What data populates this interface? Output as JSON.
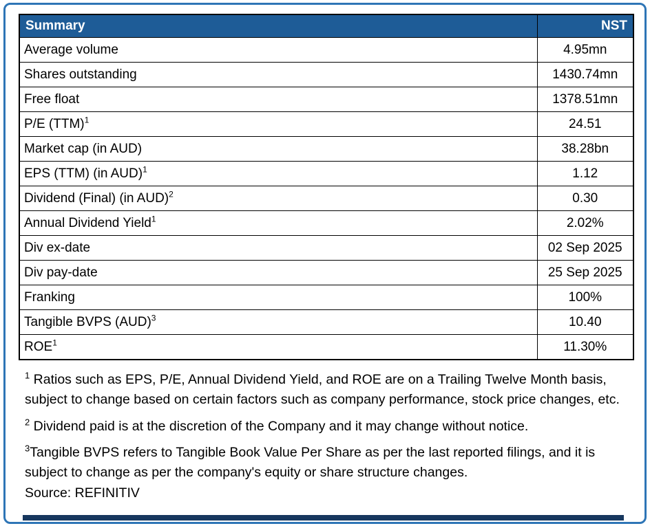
{
  "table": {
    "header": {
      "title": "Summary",
      "ticker": "NST"
    },
    "rows": [
      {
        "label": "Average volume",
        "sup": "",
        "value": "4.95mn"
      },
      {
        "label": "Shares outstanding",
        "sup": "",
        "value": "1430.74mn"
      },
      {
        "label": "Free float",
        "sup": "",
        "value": "1378.51mn"
      },
      {
        "label": "P/E (TTM)",
        "sup": "1",
        "value": "24.51"
      },
      {
        "label": "Market cap (in AUD)",
        "sup": "",
        "value": "38.28bn"
      },
      {
        "label": "EPS (TTM) (in AUD)",
        "sup": "1",
        "value": "1.12"
      },
      {
        "label": "Dividend (Final) (in AUD)",
        "sup": "2",
        "value": "0.30"
      },
      {
        "label": "Annual Dividend Yield",
        "sup": "1",
        "value": "2.02%"
      },
      {
        "label": "Div ex-date",
        "sup": "",
        "value": "02 Sep 2025"
      },
      {
        "label": "Div pay-date",
        "sup": "",
        "value": "25 Sep 2025"
      },
      {
        "label": "Franking",
        "sup": "",
        "value": "100%"
      },
      {
        "label": "Tangible BVPS (AUD)",
        "sup": "3",
        "value": "10.40"
      },
      {
        "label": "ROE",
        "sup": "1",
        "value": "11.30%"
      }
    ]
  },
  "footnotes": [
    {
      "sup": "1",
      "text": " Ratios such as EPS, P/E,  Annual Dividend Yield, and ROE are on a Trailing Twelve Month basis, subject to change based on certain factors such as company performance, stock price changes, etc."
    },
    {
      "sup": "2",
      "text": " Dividend paid is at the discretion of the Company and it may change without notice."
    },
    {
      "sup": "3",
      "text": "Tangible BVPS refers to Tangible Book Value Per Share as per the last reported filings, and it is subject to change as per the company's equity or share structure changes."
    }
  ],
  "source": "Source: REFINITIV",
  "colors": {
    "header_bg": "#1E5C97",
    "frame_border": "#2E75B6",
    "bottom_bar": "#17375E"
  }
}
